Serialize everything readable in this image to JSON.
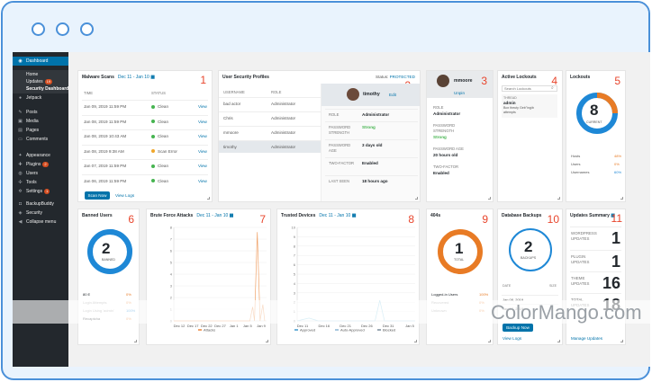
{
  "sidebar": {
    "items": [
      {
        "icon": "dashboard-icon",
        "label": "Dashboard",
        "glyph": "◉"
      },
      {
        "label": "Home"
      },
      {
        "label": "Updates",
        "badge": "19"
      },
      {
        "label": "Security Dashboard"
      },
      {
        "icon": "jetpack-icon",
        "label": "Jetpack",
        "glyph": "●"
      },
      {
        "icon": "pin-icon",
        "label": "Posts",
        "glyph": "✎"
      },
      {
        "icon": "media-icon",
        "label": "Media",
        "glyph": "▣"
      },
      {
        "icon": "pages-icon",
        "label": "Pages",
        "glyph": "▤"
      },
      {
        "icon": "comments-icon",
        "label": "Comments",
        "glyph": "▭"
      },
      {
        "icon": "appearance-icon",
        "label": "Appearance",
        "glyph": "✦"
      },
      {
        "icon": "plugins-icon",
        "label": "Plugins",
        "glyph": "✚",
        "badge": "2"
      },
      {
        "icon": "users-icon",
        "label": "Users",
        "glyph": "◍"
      },
      {
        "icon": "tools-icon",
        "label": "Tools",
        "glyph": "✣"
      },
      {
        "icon": "settings-icon",
        "label": "Settings",
        "glyph": "✲",
        "badge": "1"
      },
      {
        "icon": "backupbuddy-icon",
        "label": "BackupBuddy",
        "glyph": "◘"
      },
      {
        "icon": "security-icon",
        "label": "Security",
        "glyph": "◈"
      },
      {
        "icon": "collapse-icon",
        "label": "Collapse menu",
        "glyph": "◀"
      }
    ]
  },
  "malware": {
    "title": "Malware Scans",
    "date": "Dec 11 - Jan 10",
    "num": "1",
    "headers": {
      "time": "TIME",
      "status": "STATUS"
    },
    "rows": [
      {
        "time": "Jan 09, 2019 11:59 PM",
        "status": "Clean",
        "color": "#46b450",
        "action": "View"
      },
      {
        "time": "Jan 08, 2019 11:59 PM",
        "status": "Clean",
        "color": "#46b450",
        "action": "View"
      },
      {
        "time": "Jan 08, 2019 10:43 AM",
        "status": "Clean",
        "color": "#46b450",
        "action": "View"
      },
      {
        "time": "Jan 08, 2019 9:38 AM",
        "status": "Scan Error",
        "color": "#f0a72c",
        "action": "View"
      },
      {
        "time": "Jan 07, 2019 11:59 PM",
        "status": "Clean",
        "color": "#46b450",
        "action": "View"
      },
      {
        "time": "Jan 06, 2019 11:59 PM",
        "status": "Clean",
        "color": "#46b450",
        "action": "View"
      }
    ],
    "scan_button": "Scan Now",
    "view_logs": "View Logs"
  },
  "profiles": {
    "title": "User Security Profiles",
    "status_label": "Status:",
    "status_value": "PROTECTED",
    "num": "2",
    "headers": {
      "username": "USERNAME",
      "role": "ROLE"
    },
    "rows": [
      {
        "username": "bad actor",
        "role": "Administrator"
      },
      {
        "username": "Chris",
        "role": "Administrator"
      },
      {
        "username": "mmoore",
        "role": "Administrator"
      },
      {
        "username": "timothy",
        "role": "Administrator"
      }
    ],
    "detail": {
      "name": "timothy",
      "edit": "Edit",
      "fields": [
        {
          "label": "ROLE",
          "value": "Administrator"
        },
        {
          "label": "PASSWORD STRENGTH",
          "value": "Strong"
        },
        {
          "label": "PASSWORD AGE",
          "value": "3 days old"
        },
        {
          "label": "TWO-FACTOR",
          "value": "Enabled"
        },
        {
          "label": "LAST SEEN",
          "value": "18 hours ago"
        }
      ]
    }
  },
  "user_card": {
    "name": "mmoore",
    "edit": "Unpin",
    "num": "3",
    "fields": [
      {
        "label": "ROLE",
        "value": "Administrator"
      },
      {
        "label": "PASSWORD STRENGTH",
        "value": "Strong"
      },
      {
        "label": "PASSWORD AGE",
        "value": "20 hours old"
      },
      {
        "label": "TWO-FACTOR",
        "value": "Enabled"
      }
    ]
  },
  "lockouts_active": {
    "title": "Active Lockouts",
    "num": "4",
    "search_placeholder": "Search Lockouts",
    "entry_label": "THREAD",
    "entry_user": "admin",
    "entry_detail1": "Box theuty Geb\"ing\\b",
    "entry_detail2": "attempts"
  },
  "lockouts": {
    "title": "Lockouts",
    "num": "5",
    "count": "8",
    "caption": "CURRENT",
    "rows": [
      {
        "label": "Hosts",
        "value": "48%"
      },
      {
        "label": "Users",
        "value": "0%"
      },
      {
        "label": "Usernames",
        "value": "60%"
      }
    ]
  },
  "banned": {
    "title": "Banned Users",
    "num": "6",
    "count": "2",
    "caption": "BANNED",
    "rows": [
      {
        "label": "80 E",
        "value": "0%"
      },
      {
        "label": "Login Attempts",
        "value": "0%"
      },
      {
        "label": "Login Using 'admin'",
        "value": "100%"
      },
      {
        "label": "Recaptcha",
        "value": "0%"
      }
    ]
  },
  "brute": {
    "title": "Brute Force Attacks",
    "date": "Dec 11 - Jan 10",
    "num": "7",
    "y_ticks": [
      "8",
      "7",
      "6",
      "5",
      "4",
      "3",
      "2",
      "1",
      "0"
    ],
    "x_ticks": [
      "Dec 12",
      "Dec 17",
      "Dec 22",
      "Dec 27",
      "Jan 1",
      "Jan 5",
      "Jan 9"
    ],
    "legend": "Attacks"
  },
  "trusted": {
    "title": "Trusted Devices",
    "date": "Dec 11 - Jan 10",
    "num": "8",
    "y_ticks": [
      "10",
      "9",
      "8",
      "7",
      "6",
      "5",
      "4",
      "3",
      "2",
      "1",
      "0"
    ],
    "x_ticks": [
      "Dec 11",
      "Dec 16",
      "Dec 21",
      "Dec 26",
      "Dec 31",
      "Jan 5"
    ],
    "legend": [
      "Approved",
      "Auto-Approved",
      "Blocked"
    ]
  },
  "notfound": {
    "title": "404s",
    "num": "9",
    "count": "1",
    "caption": "TOTAL",
    "rows": [
      {
        "label": "Logged-in Users",
        "value": "100%"
      },
      {
        "label": "Recovered",
        "value": "0%"
      },
      {
        "label": "Unknown",
        "value": "0%"
      }
    ]
  },
  "backups": {
    "title": "Database Backups",
    "num": "10",
    "count": "2",
    "caption": "BACKUPS",
    "headers": {
      "date": "DATE",
      "size": "SIZE"
    },
    "rows": [
      {
        "date": "Jan 08, 2019",
        "size": ""
      },
      {
        "date": "Jan 07, 2019",
        "size": ""
      }
    ],
    "button": "Backup Now",
    "view_logs": "View Logs"
  },
  "updates": {
    "title": "Updates Summary",
    "num": "11",
    "rows": [
      {
        "label": "WORDPRESS UPDATES",
        "value": "1"
      },
      {
        "label": "PLUGIN UPDATES",
        "value": "1"
      },
      {
        "label": "THEME UPDATES",
        "value": "16"
      },
      {
        "label": "TOTAL UPDATES",
        "value": "18"
      }
    ],
    "manage": "Manage Updates"
  },
  "watermark": "ColorMango.com",
  "colors": {
    "accent": "#0073aa",
    "sidebar": "#23282d",
    "red_number": "#e8452c",
    "donut_blue": "#1e88d6",
    "donut_orange": "#e87b25"
  }
}
